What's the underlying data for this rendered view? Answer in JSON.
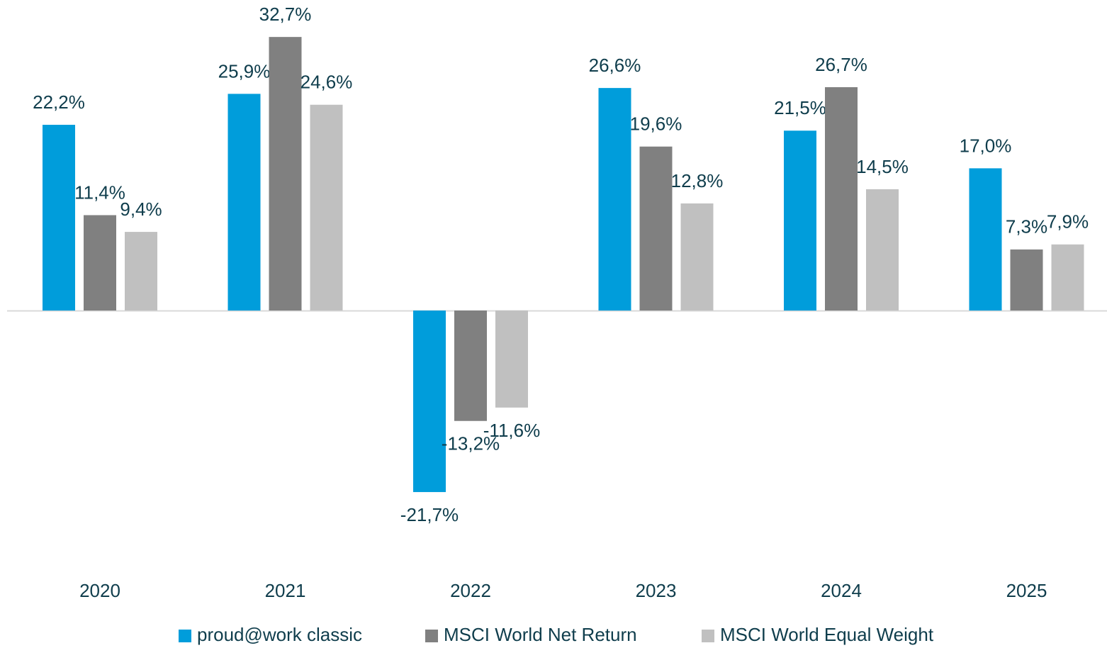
{
  "chart_data": {
    "type": "bar",
    "categories": [
      "2020",
      "2021",
      "2022",
      "2023",
      "2024",
      "2025"
    ],
    "series": [
      {
        "name": "proud@work classic",
        "color": "#009ddb",
        "values": [
          22.2,
          25.9,
          -21.7,
          26.6,
          21.5,
          17.0
        ],
        "value_labels": [
          "22,2%",
          "25,9%",
          "-21,7%",
          "26,6%",
          "21,5%",
          "17,0%"
        ]
      },
      {
        "name": "MSCI World Net Return",
        "color": "#808080",
        "values": [
          11.4,
          32.7,
          -13.2,
          19.6,
          26.7,
          7.3
        ],
        "value_labels": [
          "11,4%",
          "32,7%",
          "-13,2%",
          "19,6%",
          "26,7%",
          "7,3%"
        ]
      },
      {
        "name": "MSCI World Equal Weight",
        "color": "#c0c0c0",
        "values": [
          9.4,
          24.6,
          -11.6,
          12.8,
          14.5,
          7.9
        ],
        "value_labels": [
          "9,4%",
          "24,6%",
          "-11,6%",
          "12,8%",
          "14,5%",
          "7,9%"
        ]
      }
    ],
    "legend": "bottom"
  }
}
